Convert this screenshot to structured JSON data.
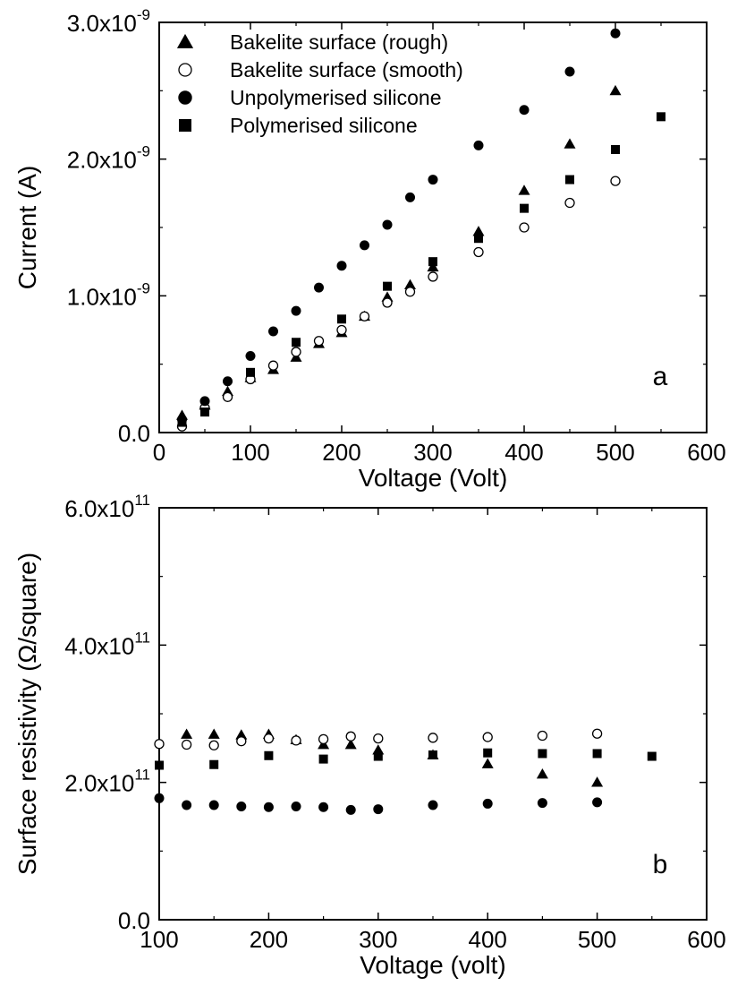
{
  "chart_data": [
    {
      "type": "scatter",
      "panel_label": "a",
      "xlabel": "Voltage (Volt)",
      "ylabel": "Current (A)",
      "xlim": [
        0,
        600
      ],
      "ylim": [
        0,
        3e-09
      ],
      "x_ticks": [
        0,
        100,
        200,
        300,
        400,
        500,
        600
      ],
      "x_tick_labels": [
        "0",
        "100",
        "200",
        "300",
        "400",
        "500",
        "600"
      ],
      "y_ticks": [
        0,
        1e-09,
        2e-09,
        3e-09
      ],
      "y_tick_labels": [
        {
          "mantissa": "0.0",
          "exponent": ""
        },
        {
          "mantissa": "1.0x10",
          "exponent": "-9"
        },
        {
          "mantissa": "2.0x10",
          "exponent": "-9"
        },
        {
          "mantissa": "3.0x10",
          "exponent": "-9"
        }
      ],
      "grid": false,
      "legend": "top-left",
      "series": [
        {
          "name": "Bakelite surface (rough)",
          "marker": "filled-triangle",
          "x": [
            25,
            50,
            75,
            100,
            125,
            150,
            175,
            200,
            225,
            250,
            275,
            300,
            350,
            400,
            450,
            500
          ],
          "y": [
            1.25e-10,
            2e-10,
            3e-10,
            4e-10,
            4.6e-10,
            5.5e-10,
            6.5e-10,
            7.3e-10,
            8.5e-10,
            9.9e-10,
            1.08e-09,
            1.21e-09,
            1.47e-09,
            1.77e-09,
            2.11e-09,
            2.5e-09
          ]
        },
        {
          "name": "Bakelite surface (smooth)",
          "marker": "open-circle",
          "x": [
            25,
            50,
            75,
            100,
            125,
            150,
            175,
            200,
            225,
            250,
            275,
            300,
            350,
            400,
            450,
            500
          ],
          "y": [
            4.5e-11,
            1.8e-10,
            2.6e-10,
            3.9e-10,
            4.9e-10,
            5.9e-10,
            6.7e-10,
            7.5e-10,
            8.5e-10,
            9.5e-10,
            1.03e-09,
            1.14e-09,
            1.32e-09,
            1.5e-09,
            1.68e-09,
            1.84e-09
          ]
        },
        {
          "name": "Unpolymerised silicone",
          "marker": "filled-circle",
          "x": [
            25,
            50,
            75,
            100,
            125,
            150,
            175,
            200,
            225,
            250,
            275,
            300,
            350,
            400,
            450,
            500
          ],
          "y": [
            9.5e-11,
            2.3e-10,
            3.75e-10,
            5.6e-10,
            7.4e-10,
            8.9e-10,
            1.06e-09,
            1.22e-09,
            1.37e-09,
            1.52e-09,
            1.72e-09,
            1.85e-09,
            2.1e-09,
            2.36e-09,
            2.64e-09,
            2.92e-09
          ]
        },
        {
          "name": "Polymerised silicone",
          "marker": "filled-square",
          "x": [
            25,
            50,
            100,
            150,
            200,
            250,
            300,
            350,
            400,
            450,
            500,
            550
          ],
          "y": [
            7.5e-11,
            1.5e-10,
            4.4e-10,
            6.6e-10,
            8.3e-10,
            1.07e-09,
            1.25e-09,
            1.42e-09,
            1.64e-09,
            1.85e-09,
            2.07e-09,
            2.31e-09
          ]
        }
      ]
    },
    {
      "type": "scatter",
      "panel_label": "b",
      "xlabel": "Voltage (volt)",
      "ylabel": "Surface resistivity (Ω/square)",
      "xlim": [
        100,
        600
      ],
      "ylim": [
        0,
        600000000000.0
      ],
      "x_ticks": [
        100,
        200,
        300,
        400,
        500,
        600
      ],
      "x_tick_labels": [
        "100",
        "200",
        "300",
        "400",
        "500",
        "600"
      ],
      "y_ticks": [
        0,
        200000000000.0,
        400000000000.0,
        600000000000.0
      ],
      "y_tick_labels": [
        {
          "mantissa": "0.0",
          "exponent": ""
        },
        {
          "mantissa": "2.0x10",
          "exponent": "11"
        },
        {
          "mantissa": "4.0x10",
          "exponent": "11"
        },
        {
          "mantissa": "6.0x10",
          "exponent": "11"
        }
      ],
      "grid": false,
      "series": [
        {
          "marker": "filled-triangle",
          "x": [
            125,
            150,
            175,
            200,
            225,
            250,
            275,
            300,
            350,
            400,
            450,
            500
          ],
          "y": [
            270000000000.0,
            270000000000.0,
            269000000000.0,
            270000000000.0,
            262000000000.0,
            255000000000.0,
            255000000000.0,
            247000000000.0,
            240000000000.0,
            227000000000.0,
            212000000000.0,
            200000000000.0
          ]
        },
        {
          "marker": "open-circle",
          "x": [
            100,
            125,
            150,
            175,
            200,
            225,
            250,
            275,
            300,
            350,
            400,
            450,
            500
          ],
          "y": [
            256000000000.0,
            255000000000.0,
            254000000000.0,
            260000000000.0,
            264000000000.0,
            261000000000.0,
            263000000000.0,
            267000000000.0,
            264000000000.0,
            265000000000.0,
            266000000000.0,
            268000000000.0,
            271000000000.0
          ]
        },
        {
          "marker": "filled-circle",
          "x": [
            100,
            125,
            150,
            175,
            200,
            225,
            250,
            275,
            300,
            350,
            400,
            450,
            500
          ],
          "y": [
            177000000000.0,
            167000000000.0,
            167000000000.0,
            165000000000.0,
            164000000000.0,
            165000000000.0,
            164000000000.0,
            160000000000.0,
            161000000000.0,
            167000000000.0,
            169000000000.0,
            170000000000.0,
            171000000000.0
          ]
        },
        {
          "marker": "filled-square",
          "x": [
            100,
            150,
            200,
            250,
            300,
            350,
            400,
            450,
            500,
            550
          ],
          "y": [
            225000000000.0,
            226000000000.0,
            239000000000.0,
            234000000000.0,
            238000000000.0,
            240000000000.0,
            243000000000.0,
            242000000000.0,
            242000000000.0,
            238000000000.0
          ]
        }
      ]
    }
  ]
}
